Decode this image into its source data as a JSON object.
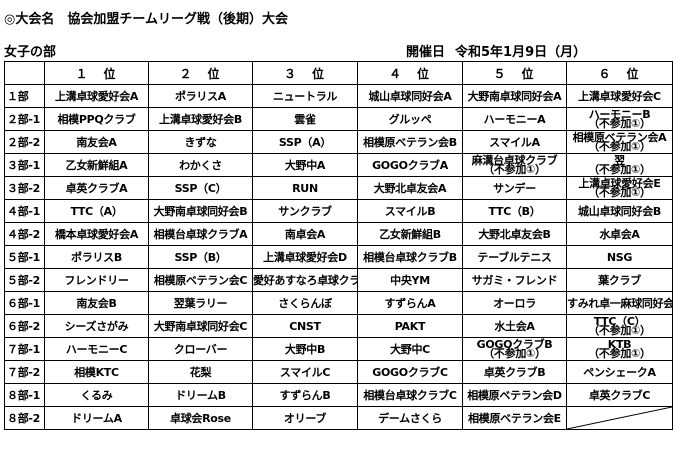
{
  "title": "◎大会名　協会加盟チームリーグ戦（後期）大会",
  "section": "女子の部",
  "date_label": "開催日",
  "date_value": "令和5年1月9日（月）",
  "headers": [
    "",
    "１　位",
    "２　位",
    "３　位",
    "４　位",
    "５　位",
    "６　位"
  ],
  "rows": [
    {
      "label": "１部",
      "cells": [
        "上溝卓球愛好会A",
        "ポラリスA",
        "ニュートラル",
        "城山卓球同好会A",
        "大野南卓球同好会A",
        "上溝卓球愛好会C"
      ]
    },
    {
      "label": "２部-1",
      "cells": [
        "相模PPQクラブ",
        "上溝卓球愛好会B",
        "雲雀",
        "グルッペ",
        "ハーモニーA",
        [
          "ハーモニーB",
          "（不参加①）"
        ]
      ]
    },
    {
      "label": "２部-2",
      "cells": [
        "南友会A",
        "きずな",
        "SSP（A）",
        "相模原ベテラン会B",
        "スマイルA",
        [
          "相模原ベテラン会A",
          "（不参加①）"
        ]
      ]
    },
    {
      "label": "３部-1",
      "cells": [
        "乙女新鮮組A",
        "わかくさ",
        "大野中A",
        "GOGOクラブA",
        [
          "麻溝台卓球クラブ",
          "（不参加①）"
        ],
        [
          "翌",
          "（不参加①）"
        ]
      ]
    },
    {
      "label": "３部-2",
      "cells": [
        "卓英クラブA",
        "SSP（C）",
        "RUN",
        "大野北卓友会A",
        "サンデー",
        [
          "上溝卓球愛好会E",
          "（不参加①）"
        ]
      ]
    },
    {
      "label": "４部-1",
      "cells": [
        "TTC（A）",
        "大野南卓球同好会B",
        "サンクラブ",
        "スマイルB",
        "TTC（B）",
        "城山卓球同好会B"
      ]
    },
    {
      "label": "４部-2",
      "cells": [
        "橋本卓球愛好会A",
        "相模台卓球クラブA",
        "南卓会A",
        "乙女新鮮組B",
        "大野北卓友会B",
        "水卓会A"
      ]
    },
    {
      "label": "５部-1",
      "cells": [
        "ポラリスB",
        "SSP（B）",
        "上溝卓球愛好会D",
        "相模台卓球クラブB",
        "テーブルテニス",
        "NSG"
      ]
    },
    {
      "label": "５部-2",
      "cells": [
        "フレンドリー",
        "相模原ベテラン会C",
        "愛好あすなろ卓球クラブ",
        "中央YM",
        "サガミ・フレンド",
        "葉クラブ"
      ]
    },
    {
      "label": "６部-1",
      "cells": [
        "南友会B",
        "翌葉ラリー",
        "さくらんぼ",
        "すずらんA",
        "オーロラ",
        "すみれ卓一麻球同好会"
      ]
    },
    {
      "label": "６部-2",
      "cells": [
        "シーズさがみ",
        "大野南卓球同好会C",
        "CNST",
        "PAKT",
        "水土会A",
        [
          "TTC（C）",
          "（不参加①）"
        ]
      ]
    },
    {
      "label": "７部-1",
      "cells": [
        "ハーモニーC",
        "クローバー",
        "大野中B",
        "大野中C",
        [
          "GOGOクラブB",
          "（不参加①）"
        ],
        [
          "KTB",
          "（不参加①）"
        ]
      ]
    },
    {
      "label": "７部-2",
      "cells": [
        "相模KTC",
        "花梨",
        "スマイルC",
        "GOGOクラブC",
        "卓英クラブB",
        "ペンシェークA"
      ]
    },
    {
      "label": "８部-1",
      "cells": [
        "くるみ",
        "ドリームB",
        "すずらんB",
        "相模台卓球クラブC",
        "相模原ベテラン会D",
        "卓英クラブC"
      ]
    },
    {
      "label": "８部-2",
      "cells": [
        "ドリームA",
        "卓球会Rose",
        "オリーブ",
        "デームさくら",
        "相模原ベテラン会E",
        ""
      ]
    }
  ]
}
